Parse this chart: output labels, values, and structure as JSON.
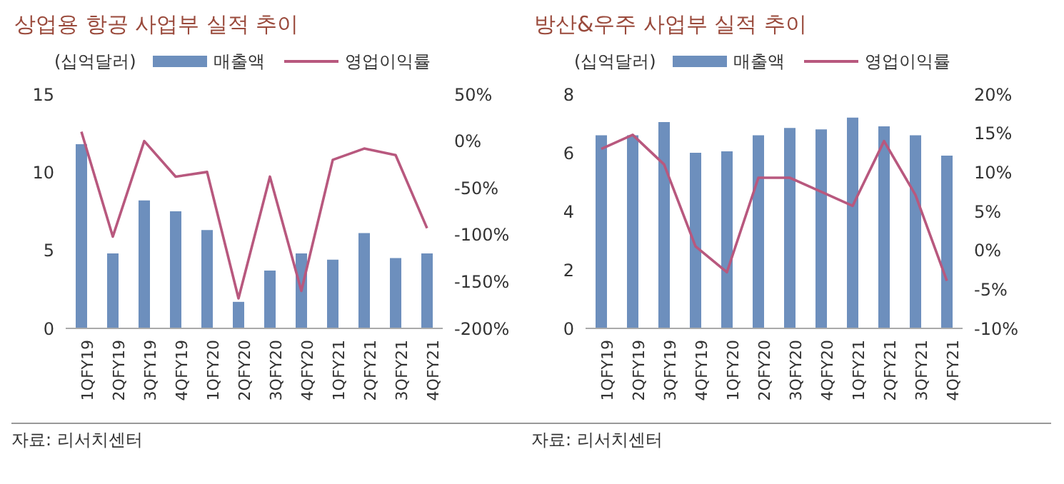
{
  "chart_data": [
    {
      "type": "bar",
      "title": "상업용 항공 사업부 실적 추이",
      "ylabel": "(십억달러)",
      "categories": [
        "1QFY19",
        "2QFY19",
        "3QFY19",
        "4QFY19",
        "1QFY20",
        "2QFY20",
        "3QFY20",
        "4QFY20",
        "1QFY21",
        "2QFY21",
        "3QFY21",
        "4QFY21"
      ],
      "series": [
        {
          "name": "매출액",
          "color": "#6d8fbd",
          "values": [
            11.8,
            4.8,
            8.2,
            7.5,
            6.3,
            1.7,
            3.7,
            4.8,
            4.4,
            6.1,
            4.5,
            4.8
          ]
        },
        {
          "name": "영업이익률",
          "type": "line",
          "axis": "y2",
          "color": "#b8587e",
          "values": [
            10,
            -102,
            0,
            -38,
            -33,
            -168,
            -38,
            -160,
            -20,
            -8,
            -15,
            -93
          ]
        }
      ],
      "ylim": [
        0,
        15
      ],
      "yticks": [
        0,
        5,
        10,
        15
      ],
      "y2lim": [
        -200,
        50
      ],
      "y2ticks": [
        {
          "value": -200,
          "label": "-200%"
        },
        {
          "value": -150,
          "label": "-150%"
        },
        {
          "value": -100,
          "label": "-100%"
        },
        {
          "value": -50,
          "label": "-50%"
        },
        {
          "value": 0,
          "label": "0%"
        },
        {
          "value": 50,
          "label": "50%"
        }
      ],
      "legend": "top",
      "marker": "none",
      "annotations": [
        "자료: 리서치센터"
      ]
    },
    {
      "type": "bar",
      "title": "방산&우주 사업부 실적 추이",
      "ylabel": "(십억달러)",
      "categories": [
        "1QFY19",
        "2QFY19",
        "3QFY19",
        "4QFY19",
        "1QFY20",
        "2QFY20",
        "3QFY20",
        "4QFY20",
        "1QFY21",
        "2QFY21",
        "3QFY21",
        "4QFY21"
      ],
      "series": [
        {
          "name": "매출액",
          "color": "#6d8fbd",
          "values": [
            6.6,
            6.6,
            7.05,
            6.0,
            6.05,
            6.6,
            6.85,
            6.8,
            7.2,
            6.9,
            6.6,
            5.9
          ]
        },
        {
          "name": "영업이익률",
          "type": "line",
          "axis": "y2",
          "color": "#b8587e",
          "values": [
            13,
            14.8,
            11,
            0.5,
            -2.8,
            9.3,
            9.3,
            7.5,
            5.7,
            14,
            7.1,
            -3.9
          ]
        }
      ],
      "ylim": [
        0,
        8
      ],
      "yticks": [
        0,
        2,
        4,
        6,
        8
      ],
      "y2lim": [
        -10,
        20
      ],
      "y2ticks": [
        {
          "value": -10,
          "label": "-10%"
        },
        {
          "value": -5,
          "label": "-5%"
        },
        {
          "value": 0,
          "label": "0%"
        },
        {
          "value": 5,
          "label": "5%"
        },
        {
          "value": 10,
          "label": "10%"
        },
        {
          "value": 15,
          "label": "15%"
        },
        {
          "value": 20,
          "label": "20%"
        }
      ],
      "legend": "top",
      "marker": "none",
      "annotations": [
        "자료: 리서치센터"
      ]
    }
  ]
}
